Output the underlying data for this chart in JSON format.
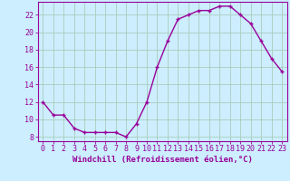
{
  "x": [
    0,
    1,
    2,
    3,
    4,
    5,
    6,
    7,
    8,
    9,
    10,
    11,
    12,
    13,
    14,
    15,
    16,
    17,
    18,
    19,
    20,
    21,
    22,
    23
  ],
  "y": [
    12,
    10.5,
    10.5,
    9,
    8.5,
    8.5,
    8.5,
    8.5,
    8,
    9.5,
    12,
    16,
    19,
    21.5,
    22,
    22.5,
    22.5,
    23,
    23,
    22,
    21,
    19,
    17,
    15.5
  ],
  "line_color": "#990099",
  "marker": "+",
  "bg_color": "#cceeff",
  "grid_color": "#aaccbb",
  "xlabel": "Windchill (Refroidissement éolien,°C)",
  "ylim": [
    7.5,
    23.5
  ],
  "xlim": [
    -0.5,
    23.5
  ],
  "yticks": [
    8,
    10,
    12,
    14,
    16,
    18,
    20,
    22
  ],
  "xticks": [
    0,
    1,
    2,
    3,
    4,
    5,
    6,
    7,
    8,
    9,
    10,
    11,
    12,
    13,
    14,
    15,
    16,
    17,
    18,
    19,
    20,
    21,
    22,
    23
  ],
  "axis_color": "#990099",
  "tick_color": "#990099",
  "label_fontsize": 6.5,
  "tick_fontsize": 6,
  "linewidth": 1.0,
  "markersize": 3.5
}
